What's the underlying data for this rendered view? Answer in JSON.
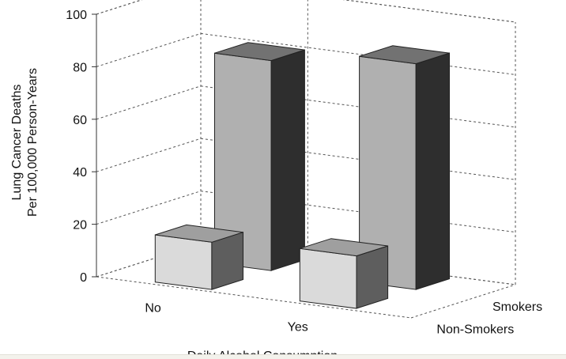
{
  "chart_data": {
    "type": "bar",
    "subtype": "3d-grouped",
    "xlabel": "Daily Alcohol Consumption",
    "ylabel": [
      "Lung Cancer Deaths",
      "Per 100,000 Person-Years"
    ],
    "ylim": [
      0,
      100
    ],
    "yticks": [
      0,
      20,
      40,
      60,
      80,
      100
    ],
    "categories": [
      "No",
      "Yes"
    ],
    "series": [
      {
        "name": "Non-Smokers",
        "values": [
          18,
          20
        ]
      },
      {
        "name": "Smokers",
        "values": [
          80,
          86
        ]
      }
    ],
    "grid": true,
    "colors": {
      "non_smokers": {
        "front": "#dadada",
        "top": "#9f9f9f",
        "side": "#5e5e5e"
      },
      "smokers": {
        "front": "#b0b0b0",
        "top": "#727272",
        "side": "#2e2e2e"
      }
    }
  }
}
